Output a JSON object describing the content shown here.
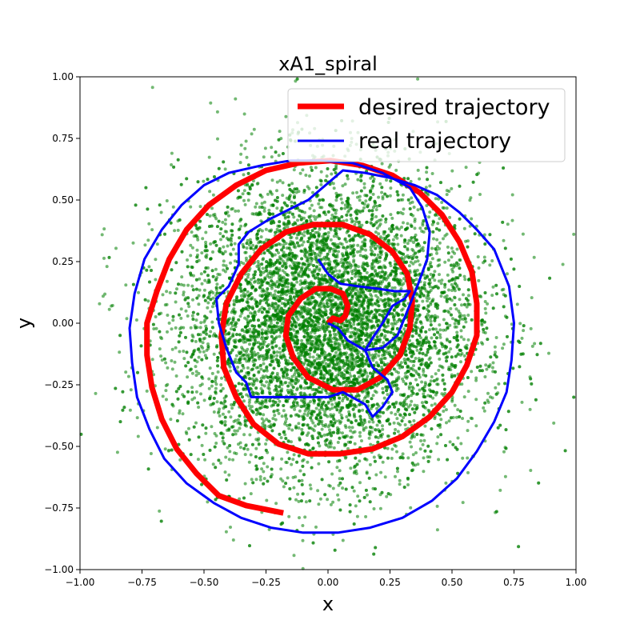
{
  "chart_data": {
    "type": "line",
    "title": "xA1_spiral",
    "xlabel": "x",
    "ylabel": "y",
    "xlim": [
      -1.0,
      1.0
    ],
    "ylim": [
      -1.0,
      1.0
    ],
    "xticks": [
      -1.0,
      -0.75,
      -0.5,
      -0.25,
      0.0,
      0.25,
      0.5,
      0.75,
      1.0
    ],
    "yticks": [
      -1.0,
      -0.75,
      -0.5,
      -0.25,
      0.0,
      0.25,
      0.5,
      0.75,
      1.0
    ],
    "xtick_labels": [
      "−1.00",
      "−0.75",
      "−0.50",
      "−0.25",
      "0.00",
      "0.25",
      "0.50",
      "0.75",
      "1.00"
    ],
    "ytick_labels": [
      "−1.00",
      "−0.75",
      "−0.50",
      "−0.25",
      "0.00",
      "0.25",
      "0.50",
      "0.75",
      "1.00"
    ],
    "grid": false,
    "legend_position": "upper-right",
    "legend": [
      {
        "label": "desired trajectory",
        "color": "#ff0000"
      },
      {
        "label": "real trajectory",
        "color": "#0000ff"
      }
    ],
    "series": [
      {
        "name": "desired trajectory",
        "color": "#ff0000",
        "style": "line",
        "points": [
          [
            0.0,
            0.0
          ],
          [
            0.02,
            0.02
          ],
          [
            0.05,
            0.01
          ],
          [
            0.07,
            0.03
          ],
          [
            0.08,
            0.07
          ],
          [
            0.06,
            0.12
          ],
          [
            0.01,
            0.14
          ],
          [
            -0.05,
            0.14
          ],
          [
            -0.11,
            0.1
          ],
          [
            -0.16,
            0.03
          ],
          [
            -0.17,
            -0.05
          ],
          [
            -0.14,
            -0.14
          ],
          [
            -0.08,
            -0.22
          ],
          [
            0.02,
            -0.27
          ],
          [
            0.12,
            -0.27
          ],
          [
            0.21,
            -0.22
          ],
          [
            0.29,
            -0.13
          ],
          [
            0.33,
            -0.02
          ],
          [
            0.34,
            0.09
          ],
          [
            0.32,
            0.2
          ],
          [
            0.26,
            0.29
          ],
          [
            0.17,
            0.36
          ],
          [
            0.06,
            0.4
          ],
          [
            -0.06,
            0.4
          ],
          [
            -0.17,
            0.37
          ],
          [
            -0.27,
            0.3
          ],
          [
            -0.35,
            0.2
          ],
          [
            -0.41,
            0.08
          ],
          [
            -0.43,
            -0.05
          ],
          [
            -0.42,
            -0.18
          ],
          [
            -0.37,
            -0.3
          ],
          [
            -0.3,
            -0.41
          ],
          [
            -0.2,
            -0.49
          ],
          [
            -0.08,
            -0.53
          ],
          [
            0.05,
            -0.53
          ],
          [
            0.18,
            -0.51
          ],
          [
            0.3,
            -0.46
          ],
          [
            0.41,
            -0.38
          ],
          [
            0.5,
            -0.28
          ],
          [
            0.56,
            -0.17
          ],
          [
            0.6,
            -0.05
          ],
          [
            0.6,
            0.08
          ],
          [
            0.58,
            0.21
          ],
          [
            0.53,
            0.33
          ],
          [
            0.46,
            0.44
          ],
          [
            0.37,
            0.53
          ],
          [
            0.26,
            0.6
          ],
          [
            0.14,
            0.64
          ],
          [
            0.01,
            0.66
          ],
          [
            -0.12,
            0.65
          ],
          [
            -0.25,
            0.62
          ],
          [
            -0.37,
            0.56
          ],
          [
            -0.48,
            0.48
          ],
          [
            -0.57,
            0.38
          ],
          [
            -0.64,
            0.26
          ],
          [
            -0.69,
            0.13
          ],
          [
            -0.73,
            0.0
          ],
          [
            -0.73,
            -0.13
          ],
          [
            -0.71,
            -0.26
          ],
          [
            -0.67,
            -0.39
          ],
          [
            -0.61,
            -0.51
          ],
          [
            -0.53,
            -0.61
          ],
          [
            -0.44,
            -0.7
          ],
          [
            -0.33,
            -0.74
          ],
          [
            -0.18,
            -0.77
          ]
        ]
      },
      {
        "name": "real trajectory",
        "color": "#0000ff",
        "style": "line",
        "points": [
          [
            -0.04,
            0.26
          ],
          [
            0.0,
            0.2
          ],
          [
            0.05,
            0.16
          ],
          [
            0.12,
            0.15
          ],
          [
            0.2,
            0.14
          ],
          [
            0.27,
            0.13
          ],
          [
            0.33,
            0.13
          ],
          [
            0.31,
            0.1
          ],
          [
            0.26,
            0.07
          ],
          [
            0.22,
            0.0
          ],
          [
            0.18,
            -0.06
          ],
          [
            0.15,
            -0.11
          ],
          [
            0.18,
            -0.18
          ],
          [
            0.24,
            -0.23
          ],
          [
            0.26,
            -0.28
          ],
          [
            0.22,
            -0.34
          ],
          [
            0.18,
            -0.38
          ],
          [
            0.15,
            -0.33
          ],
          [
            0.06,
            -0.28
          ],
          [
            0.0,
            -0.3
          ],
          [
            -0.1,
            -0.3
          ],
          [
            -0.2,
            -0.3
          ],
          [
            -0.31,
            -0.3
          ],
          [
            -0.33,
            -0.24
          ],
          [
            -0.37,
            -0.2
          ],
          [
            -0.41,
            -0.1
          ],
          [
            -0.44,
            0.0
          ],
          [
            -0.45,
            0.1
          ],
          [
            -0.4,
            0.15
          ],
          [
            -0.36,
            0.24
          ],
          [
            -0.36,
            0.32
          ],
          [
            -0.32,
            0.37
          ],
          [
            -0.24,
            0.42
          ],
          [
            -0.16,
            0.46
          ],
          [
            -0.08,
            0.5
          ],
          [
            -0.01,
            0.56
          ],
          [
            0.06,
            0.62
          ],
          [
            0.15,
            0.61
          ],
          [
            0.25,
            0.59
          ],
          [
            0.35,
            0.56
          ],
          [
            0.44,
            0.52
          ],
          [
            0.53,
            0.45
          ],
          [
            0.6,
            0.38
          ],
          [
            0.67,
            0.3
          ],
          [
            0.73,
            0.15
          ],
          [
            0.75,
            0.0
          ],
          [
            0.74,
            -0.15
          ],
          [
            0.72,
            -0.28
          ],
          [
            0.67,
            -0.4
          ],
          [
            0.6,
            -0.52
          ],
          [
            0.52,
            -0.63
          ],
          [
            0.42,
            -0.72
          ],
          [
            0.3,
            -0.79
          ],
          [
            0.17,
            -0.83
          ],
          [
            0.04,
            -0.85
          ],
          [
            -0.1,
            -0.85
          ],
          [
            -0.23,
            -0.83
          ],
          [
            -0.35,
            -0.79
          ],
          [
            -0.46,
            -0.73
          ],
          [
            -0.57,
            -0.65
          ],
          [
            -0.66,
            -0.55
          ],
          [
            -0.72,
            -0.43
          ],
          [
            -0.77,
            -0.3
          ],
          [
            -0.79,
            -0.16
          ],
          [
            -0.8,
            -0.02
          ],
          [
            -0.78,
            0.12
          ],
          [
            -0.74,
            0.26
          ],
          [
            -0.67,
            0.38
          ],
          [
            -0.59,
            0.48
          ],
          [
            -0.5,
            0.56
          ],
          [
            -0.4,
            0.61
          ],
          [
            -0.27,
            0.64
          ],
          [
            -0.15,
            0.66
          ],
          [
            -0.03,
            0.66
          ],
          [
            0.1,
            0.65
          ],
          [
            0.22,
            0.61
          ],
          [
            0.33,
            0.55
          ],
          [
            0.38,
            0.47
          ],
          [
            0.41,
            0.37
          ],
          [
            0.4,
            0.26
          ],
          [
            0.36,
            0.15
          ],
          [
            0.32,
            0.05
          ],
          [
            0.28,
            -0.05
          ],
          [
            0.22,
            -0.1
          ],
          [
            0.15,
            -0.11
          ],
          [
            0.08,
            -0.07
          ],
          [
            0.04,
            -0.02
          ],
          [
            0.0,
            0.0
          ]
        ]
      },
      {
        "name": "",
        "color": "#008000",
        "style": "scatter",
        "count": 9000,
        "distribution": "gaussian",
        "center": [
          0.0,
          0.0
        ],
        "std": [
          0.3,
          0.3
        ],
        "point_radius": 2,
        "alpha": 0.55
      }
    ]
  }
}
